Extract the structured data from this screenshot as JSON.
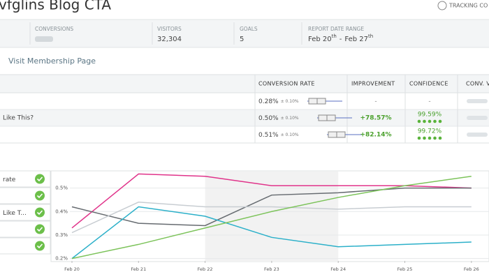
{
  "header": {
    "title": "vfglins Blog CTA",
    "tracking": "TRACKING CO"
  },
  "stats": {
    "conversions_label": "CONVERSIONS",
    "visitors_label": "VISITORS",
    "visitors": "32,304",
    "goals_label": "GOALS",
    "goals": "5",
    "range_label": "REPORT DATE RANGE",
    "range_start": "Feb 20",
    "range_start_suffix": "th",
    "range_separator": "-",
    "range_end": "Feb 27",
    "range_end_suffix": "th"
  },
  "goal_name": "Visit Membership Page",
  "table": {
    "headers": [
      "CONVERSION RATE",
      "IMPROVEMENT",
      "CONFIDENCE",
      "CONV. VISITO"
    ],
    "rows": [
      {
        "rate": "0.28%",
        "error": "± 0.10%",
        "improvement": "-",
        "confidence": "-"
      },
      {
        "name": "Like This?",
        "rate": "0.50%",
        "error": "± 0.10%",
        "improvement": "+78.57%",
        "confidence": "99.59%"
      },
      {
        "rate": "0.51%",
        "error": "± 0.10%",
        "improvement": "+82.14%",
        "confidence": "99.72%"
      }
    ]
  },
  "variation_list": [
    "rate",
    "Like T..."
  ],
  "chart_data": {
    "type": "line",
    "categories": [
      "Feb 20",
      "Feb 21",
      "Feb 22",
      "Feb 23",
      "Feb 24",
      "Feb 25",
      "Feb 26"
    ],
    "ylim": [
      0.19,
      0.57
    ],
    "yticks": [
      {
        "value": 0.2,
        "label": "0.2%"
      },
      {
        "value": 0.3,
        "label": "0.3%"
      },
      {
        "value": 0.4,
        "label": "0.4%"
      },
      {
        "value": 0.5,
        "label": "0.5%"
      }
    ],
    "grid": true,
    "series": [
      {
        "color": "#e0338a",
        "values": [
          0.33,
          0.56,
          0.55,
          0.51,
          0.51,
          0.51,
          0.5
        ]
      },
      {
        "color": "#666b70",
        "values": [
          0.42,
          0.35,
          0.34,
          0.47,
          0.48,
          0.5,
          0.5
        ]
      },
      {
        "color": "#c8cdd2",
        "values": [
          0.31,
          0.44,
          0.42,
          0.42,
          0.41,
          0.42,
          0.42
        ]
      },
      {
        "color": "#2bb0c9",
        "values": [
          0.2,
          0.42,
          0.38,
          0.29,
          0.25,
          0.26,
          0.27
        ]
      },
      {
        "color": "#7cc35a",
        "values": [
          0.2,
          0.26,
          0.33,
          0.4,
          0.46,
          0.51,
          0.55
        ]
      }
    ]
  }
}
